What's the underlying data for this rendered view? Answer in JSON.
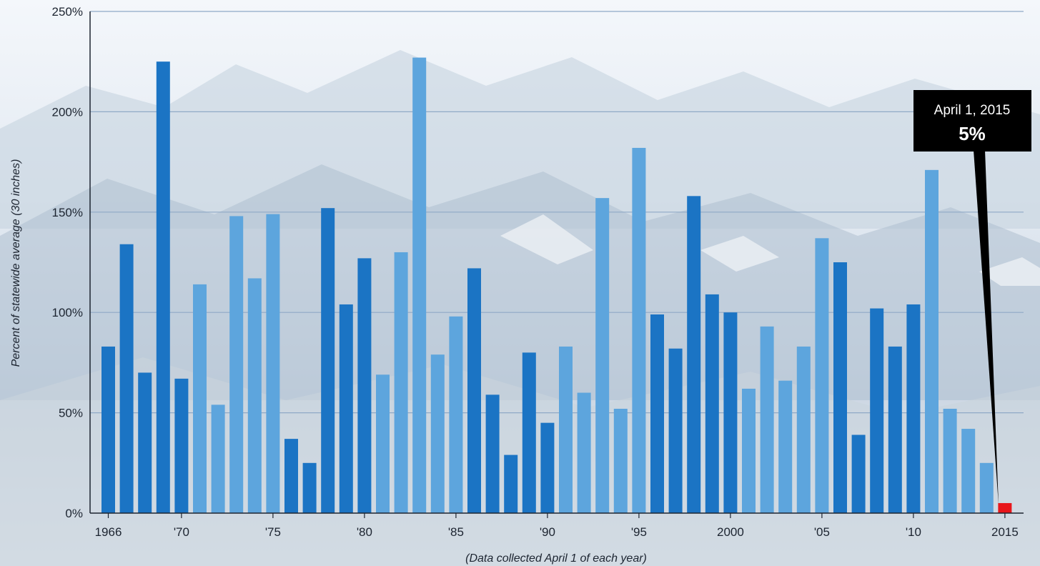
{
  "chart_data": {
    "type": "bar",
    "xlabel": "(Data collected April 1 of each year)",
    "ylabel": "Percent of statewide average (30 inches)",
    "ylim": [
      0,
      250
    ],
    "yticks": [
      {
        "value": 0,
        "label": "0%"
      },
      {
        "value": 50,
        "label": "50%"
      },
      {
        "value": 100,
        "label": "100%"
      },
      {
        "value": 150,
        "label": "150%"
      },
      {
        "value": 200,
        "label": "200%"
      },
      {
        "value": 250,
        "label": "250%"
      }
    ],
    "xticks": [
      {
        "year": 1966,
        "label": "1966"
      },
      {
        "year": 1970,
        "label": "'70"
      },
      {
        "year": 1975,
        "label": "'75"
      },
      {
        "year": 1980,
        "label": "'80"
      },
      {
        "year": 1985,
        "label": "'85"
      },
      {
        "year": 1990,
        "label": "'90"
      },
      {
        "year": 1995,
        "label": "'95"
      },
      {
        "year": 2000,
        "label": "2000"
      },
      {
        "year": 2005,
        "label": "'05"
      },
      {
        "year": 2010,
        "label": "'10"
      },
      {
        "year": 2015,
        "label": "2015"
      }
    ],
    "grid": true,
    "categories": [
      1966,
      1967,
      1968,
      1969,
      1970,
      1971,
      1972,
      1973,
      1974,
      1975,
      1976,
      1977,
      1978,
      1979,
      1980,
      1981,
      1982,
      1983,
      1984,
      1985,
      1986,
      1987,
      1988,
      1989,
      1990,
      1991,
      1992,
      1993,
      1994,
      1995,
      1996,
      1997,
      1998,
      1999,
      2000,
      2001,
      2002,
      2003,
      2004,
      2005,
      2006,
      2007,
      2008,
      2009,
      2010,
      2011,
      2012,
      2013,
      2014,
      2015
    ],
    "values": [
      83,
      134,
      70,
      225,
      67,
      114,
      54,
      148,
      117,
      149,
      37,
      25,
      152,
      104,
      127,
      69,
      130,
      227,
      79,
      98,
      122,
      59,
      29,
      80,
      45,
      83,
      60,
      157,
      52,
      182,
      99,
      82,
      158,
      109,
      100,
      62,
      93,
      66,
      83,
      137,
      125,
      39,
      102,
      83,
      104,
      171,
      52,
      42,
      25,
      5
    ],
    "colors": {
      "dark": "#1b74c4",
      "light": "#5da5dd",
      "highlight": "#e8161b",
      "gridline": "#8fa9c6"
    },
    "bar_shades": [
      "dark",
      "dark",
      "dark",
      "dark",
      "dark",
      "light",
      "light",
      "light",
      "light",
      "light",
      "dark",
      "dark",
      "dark",
      "dark",
      "dark",
      "light",
      "light",
      "light",
      "light",
      "light",
      "dark",
      "dark",
      "dark",
      "dark",
      "dark",
      "light",
      "light",
      "light",
      "light",
      "light",
      "dark",
      "dark",
      "dark",
      "dark",
      "dark",
      "light",
      "light",
      "light",
      "light",
      "light",
      "dark",
      "dark",
      "dark",
      "dark",
      "dark",
      "light",
      "light",
      "light",
      "light",
      "highlight"
    ],
    "annotation": {
      "year": 2015,
      "title": "April 1, 2015",
      "value_label": "5%"
    }
  }
}
